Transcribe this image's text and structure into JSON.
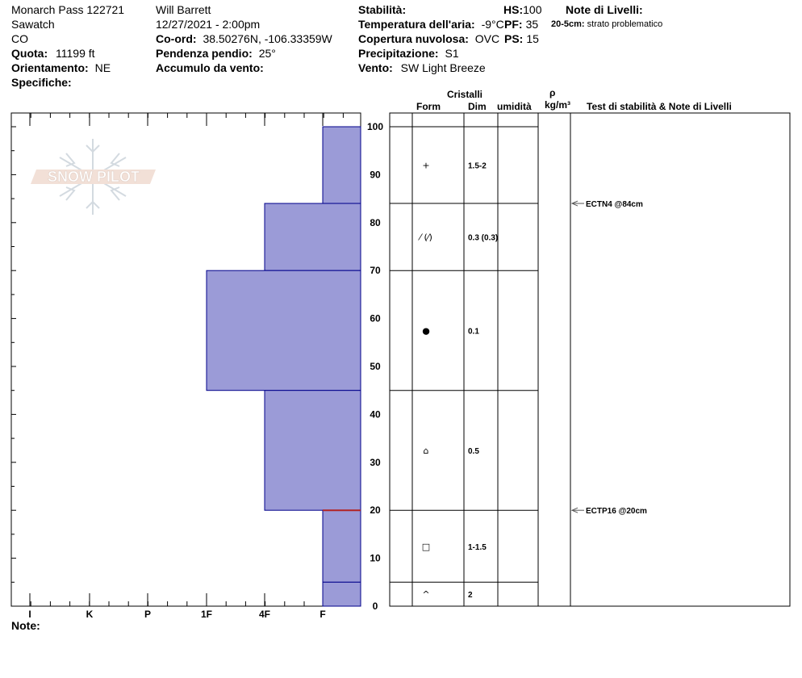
{
  "header": {
    "location": "Monarch Pass 122721",
    "range": "Sawatch",
    "state": "CO",
    "elevation_label": "Quota:",
    "elevation_value": "11199 ft",
    "aspect_label": "Orientamento:",
    "aspect_value": "NE",
    "specifics_label": "Specifiche:",
    "observer": "Will  Barrett",
    "datetime": "12/27/2021 - 2:00pm",
    "coord_label": "Co-ord:",
    "coord_value": "38.50276N, -106.33359W",
    "slope_label": "Pendenza pendio:",
    "slope_value": "25°",
    "wind_loading_label": "Accumulo da vento:",
    "stability_label": "Stabilità:",
    "air_temp_label": "Temperatura dell'aria:",
    "air_temp_value": "-9°C",
    "sky_label": "Copertura nuvolosa:",
    "sky_value": "OVC",
    "precip_label": "Precipitazione:",
    "precip_value": "S1",
    "wind_label": "Vento:",
    "wind_value": "SW  Light Breeze",
    "hs_label": "HS:",
    "hs_value": "100",
    "pf_label": "PF:",
    "pf_value": "35",
    "ps_label": "PS:",
    "ps_value": "15",
    "layer_notes_label": "Note di Livelli:",
    "layer_note_depth": "20-5cm:",
    "layer_note_text": "strato problematico"
  },
  "columns": {
    "crystals": "Cristalli",
    "form": "Form",
    "size": "Dim",
    "moisture": "umidità",
    "density_symbol": "ρ",
    "density_unit": "kg/m³",
    "tests": "Test di stabilità & Note di Livelli"
  },
  "notes_label": "Note:",
  "logo_text": "SNOW PILOT",
  "colors": {
    "layer_fill": "#9b9bd7",
    "layer_stroke": "#00008b",
    "problem_line": "#b22222"
  },
  "chart_data": {
    "type": "snow_profile",
    "y_axis": {
      "label": "",
      "min": 0,
      "max": 100,
      "ticks": [
        100,
        90,
        80,
        70,
        60,
        50,
        40,
        30,
        20,
        10,
        0
      ]
    },
    "hardness_scale": [
      "I",
      "K",
      "P",
      "1F",
      "4F",
      "F"
    ],
    "layers": [
      {
        "top": 100,
        "bottom": 84,
        "hardness": "F",
        "form": "+",
        "size": "1.5-2"
      },
      {
        "top": 84,
        "bottom": 70,
        "hardness": "4F",
        "form": "⁄ (⁄)",
        "size": "0.3 (0.3)"
      },
      {
        "top": 70,
        "bottom": 45,
        "hardness": "1F",
        "form": "●",
        "size": "0.1"
      },
      {
        "top": 45,
        "bottom": 20,
        "hardness": "4F",
        "form": "⌂",
        "size": "0.5"
      },
      {
        "top": 20,
        "bottom": 5,
        "hardness": "F",
        "form": "□",
        "size": "1-1.5"
      },
      {
        "top": 5,
        "bottom": 0,
        "hardness": "F",
        "form": "^",
        "size": "2"
      }
    ],
    "tests": [
      {
        "depth": 84,
        "label": "ECTN4 @84cm"
      },
      {
        "depth": 20,
        "label": "ECTP16 @20cm"
      }
    ],
    "problem_layer_depth": 20
  }
}
